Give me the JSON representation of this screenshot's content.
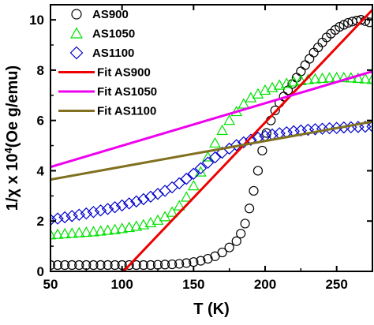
{
  "chart_data": {
    "type": "scatter",
    "xlabel": "T (K)",
    "ylabel_prefix": "1/χ x 10",
    "ylabel_exp": "4",
    "ylabel_suffix": "(Oe g/emu)",
    "xlim": [
      50,
      275
    ],
    "ylim": [
      0,
      10.6
    ],
    "xticks": [
      50,
      100,
      150,
      200,
      250
    ],
    "yticks": [
      0,
      2,
      4,
      6,
      8,
      10
    ],
    "legend_position": "top-left",
    "series": [
      {
        "name": "AS900",
        "marker": "circle",
        "color": "#000000",
        "points": [
          [
            50,
            0.25
          ],
          [
            55,
            0.25
          ],
          [
            60,
            0.25
          ],
          [
            65,
            0.25
          ],
          [
            70,
            0.25
          ],
          [
            75,
            0.25
          ],
          [
            80,
            0.25
          ],
          [
            85,
            0.25
          ],
          [
            90,
            0.25
          ],
          [
            95,
            0.25
          ],
          [
            100,
            0.25
          ],
          [
            105,
            0.25
          ],
          [
            110,
            0.25
          ],
          [
            115,
            0.25
          ],
          [
            120,
            0.25
          ],
          [
            125,
            0.26
          ],
          [
            130,
            0.27
          ],
          [
            135,
            0.28
          ],
          [
            140,
            0.3
          ],
          [
            145,
            0.33
          ],
          [
            150,
            0.37
          ],
          [
            155,
            0.42
          ],
          [
            160,
            0.5
          ],
          [
            165,
            0.6
          ],
          [
            170,
            0.75
          ],
          [
            175,
            0.95
          ],
          [
            180,
            1.2
          ],
          [
            183,
            1.5
          ],
          [
            186,
            1.9
          ],
          [
            189,
            2.5
          ],
          [
            192,
            3.2
          ],
          [
            195,
            4.0
          ],
          [
            198,
            4.8
          ],
          [
            201,
            5.5
          ],
          [
            204,
            6.0
          ],
          [
            207,
            6.4
          ],
          [
            210,
            6.7
          ],
          [
            213,
            6.95
          ],
          [
            216,
            7.2
          ],
          [
            219,
            7.45
          ],
          [
            222,
            7.7
          ],
          [
            225,
            7.95
          ],
          [
            228,
            8.2
          ],
          [
            231,
            8.45
          ],
          [
            234,
            8.7
          ],
          [
            237,
            8.9
          ],
          [
            240,
            9.1
          ],
          [
            243,
            9.3
          ],
          [
            246,
            9.45
          ],
          [
            249,
            9.6
          ],
          [
            252,
            9.72
          ],
          [
            255,
            9.8
          ],
          [
            258,
            9.88
          ],
          [
            261,
            9.93
          ],
          [
            264,
            9.97
          ],
          [
            267,
            10.0
          ],
          [
            270,
            9.95
          ],
          [
            273,
            9.9
          ]
        ]
      },
      {
        "name": "AS1050",
        "marker": "triangle",
        "color": "#00e000",
        "points": [
          [
            50,
            1.45
          ],
          [
            55,
            1.47
          ],
          [
            60,
            1.49
          ],
          [
            65,
            1.51
          ],
          [
            70,
            1.53
          ],
          [
            75,
            1.55
          ],
          [
            80,
            1.57
          ],
          [
            85,
            1.6
          ],
          [
            90,
            1.63
          ],
          [
            95,
            1.66
          ],
          [
            100,
            1.7
          ],
          [
            105,
            1.74
          ],
          [
            110,
            1.79
          ],
          [
            115,
            1.85
          ],
          [
            120,
            1.93
          ],
          [
            125,
            2.03
          ],
          [
            130,
            2.17
          ],
          [
            135,
            2.35
          ],
          [
            140,
            2.6
          ],
          [
            145,
            2.95
          ],
          [
            150,
            3.4
          ],
          [
            155,
            3.95
          ],
          [
            160,
            4.55
          ],
          [
            165,
            5.1
          ],
          [
            170,
            5.6
          ],
          [
            175,
            6.0
          ],
          [
            180,
            6.35
          ],
          [
            185,
            6.65
          ],
          [
            190,
            6.9
          ],
          [
            195,
            7.05
          ],
          [
            200,
            7.2
          ],
          [
            205,
            7.3
          ],
          [
            210,
            7.4
          ],
          [
            215,
            7.47
          ],
          [
            220,
            7.53
          ],
          [
            225,
            7.58
          ],
          [
            230,
            7.62
          ],
          [
            235,
            7.65
          ],
          [
            240,
            7.67
          ],
          [
            245,
            7.69
          ],
          [
            250,
            7.7
          ],
          [
            255,
            7.7
          ],
          [
            260,
            7.69
          ],
          [
            265,
            7.67
          ],
          [
            270,
            7.65
          ],
          [
            275,
            7.63
          ]
        ]
      },
      {
        "name": "AS1100",
        "marker": "diamond",
        "color": "#0000cc",
        "points": [
          [
            50,
            2.05
          ],
          [
            55,
            2.1
          ],
          [
            60,
            2.15
          ],
          [
            65,
            2.2
          ],
          [
            70,
            2.25
          ],
          [
            75,
            2.3
          ],
          [
            80,
            2.36
          ],
          [
            85,
            2.42
          ],
          [
            90,
            2.48
          ],
          [
            95,
            2.55
          ],
          [
            100,
            2.62
          ],
          [
            105,
            2.7
          ],
          [
            110,
            2.78
          ],
          [
            115,
            2.87
          ],
          [
            120,
            2.97
          ],
          [
            125,
            3.08
          ],
          [
            130,
            3.2
          ],
          [
            135,
            3.34
          ],
          [
            140,
            3.5
          ],
          [
            145,
            3.68
          ],
          [
            150,
            3.88
          ],
          [
            155,
            4.1
          ],
          [
            160,
            4.32
          ],
          [
            165,
            4.53
          ],
          [
            170,
            4.72
          ],
          [
            175,
            4.88
          ],
          [
            180,
            5.02
          ],
          [
            185,
            5.13
          ],
          [
            190,
            5.23
          ],
          [
            195,
            5.31
          ],
          [
            200,
            5.38
          ],
          [
            205,
            5.44
          ],
          [
            210,
            5.49
          ],
          [
            215,
            5.53
          ],
          [
            220,
            5.57
          ],
          [
            225,
            5.6
          ],
          [
            230,
            5.63
          ],
          [
            235,
            5.65
          ],
          [
            240,
            5.67
          ],
          [
            245,
            5.69
          ],
          [
            250,
            5.7
          ],
          [
            255,
            5.72
          ],
          [
            260,
            5.73
          ],
          [
            265,
            5.74
          ],
          [
            270,
            5.75
          ],
          [
            275,
            5.76
          ]
        ]
      }
    ],
    "fits": [
      {
        "name": "Fit AS900",
        "color": "#ee0000",
        "x": [
          101,
          275
        ],
        "y": [
          0,
          10.4
        ]
      },
      {
        "name": "Fit AS1050",
        "color": "#ee00ee",
        "x": [
          50,
          275
        ],
        "y": [
          4.15,
          7.95
        ]
      },
      {
        "name": "Fit AS1100",
        "color": "#807020",
        "x": [
          50,
          275
        ],
        "y": [
          3.65,
          5.95
        ]
      }
    ]
  }
}
